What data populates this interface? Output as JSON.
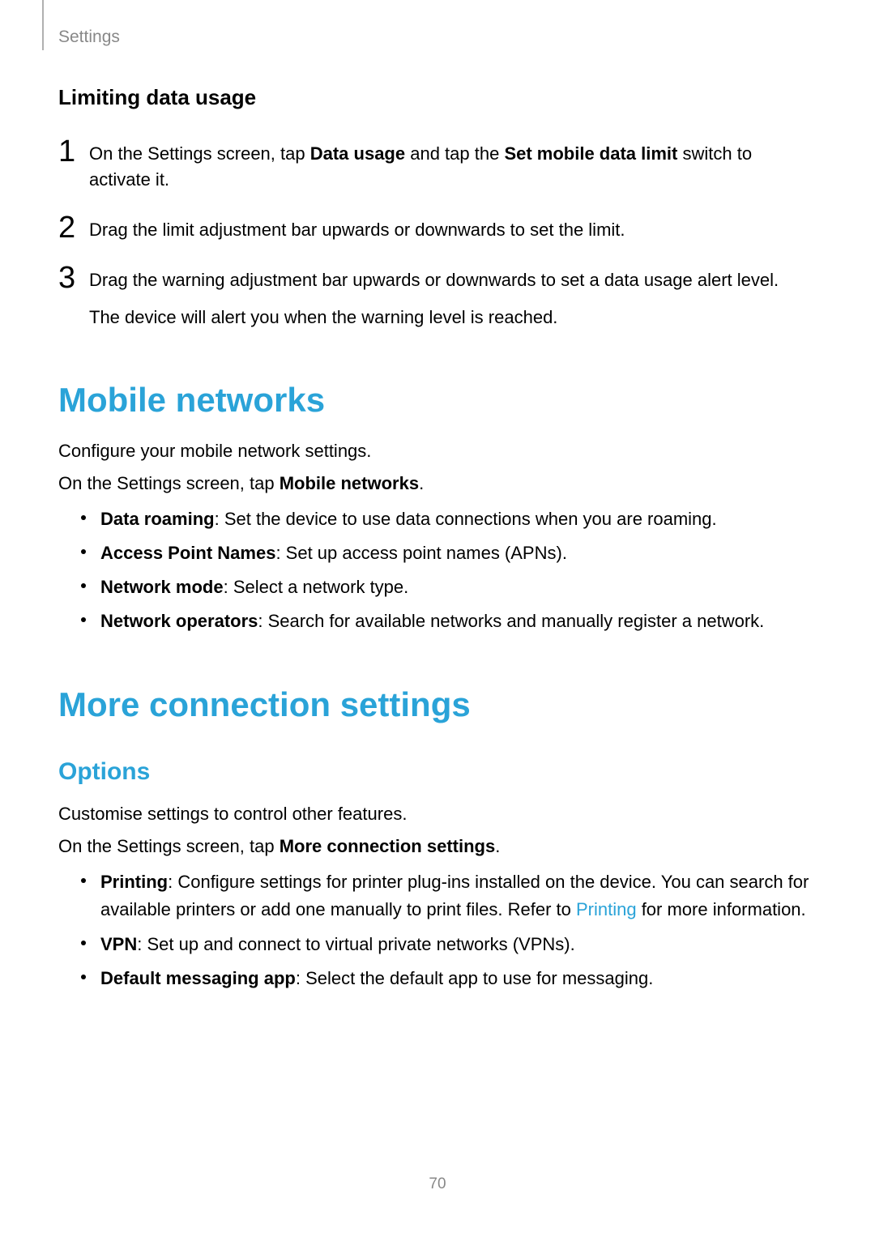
{
  "colors": {
    "heading_blue": "#2aa3d8",
    "subheading_blue": "#2aa3d8",
    "body_text": "#000000",
    "muted_text": "#888888",
    "link": "#2aa3d8",
    "background": "#ffffff"
  },
  "header": {
    "breadcrumb": "Settings"
  },
  "section_limiting": {
    "title": "Limiting data usage",
    "steps": [
      {
        "num": "1",
        "parts": [
          {
            "t": "On the Settings screen, tap "
          },
          {
            "t": "Data usage",
            "bold": true
          },
          {
            "t": " and tap the "
          },
          {
            "t": "Set mobile data limit",
            "bold": true
          },
          {
            "t": " switch to activate it."
          }
        ]
      },
      {
        "num": "2",
        "parts": [
          {
            "t": "Drag the limit adjustment bar upwards or downwards to set the limit."
          }
        ]
      },
      {
        "num": "3",
        "parts": [
          {
            "t": "Drag the warning adjustment bar upwards or downwards to set a data usage alert level."
          }
        ],
        "extra": "The device will alert you when the warning level is reached."
      }
    ]
  },
  "section_mobile": {
    "title": "Mobile networks",
    "intro1": "Configure your mobile network settings.",
    "intro2_pre": "On the Settings screen, tap ",
    "intro2_bold": "Mobile networks",
    "intro2_post": ".",
    "bullets": [
      {
        "label": "Data roaming",
        "desc": ": Set the device to use data connections when you are roaming."
      },
      {
        "label": "Access Point Names",
        "desc": ": Set up access point names (APNs)."
      },
      {
        "label": "Network mode",
        "desc": ": Select a network type."
      },
      {
        "label": "Network operators",
        "desc": ": Search for available networks and manually register a network."
      }
    ]
  },
  "section_more": {
    "title": "More connection settings",
    "subheading": "Options",
    "intro1": "Customise settings to control other features.",
    "intro2_pre": "On the Settings screen, tap ",
    "intro2_bold": "More connection settings",
    "intro2_post": ".",
    "bullets": [
      {
        "label": "Printing",
        "desc_pre": ": Configure settings for printer plug-ins installed on the device. You can search for available printers or add one manually to print files. Refer to ",
        "link": "Printing",
        "desc_post": " for more information."
      },
      {
        "label": "VPN",
        "desc": ": Set up and connect to virtual private networks (VPNs)."
      },
      {
        "label": "Default messaging app",
        "desc": ": Select the default app to use for messaging."
      }
    ]
  },
  "page_number": "70"
}
